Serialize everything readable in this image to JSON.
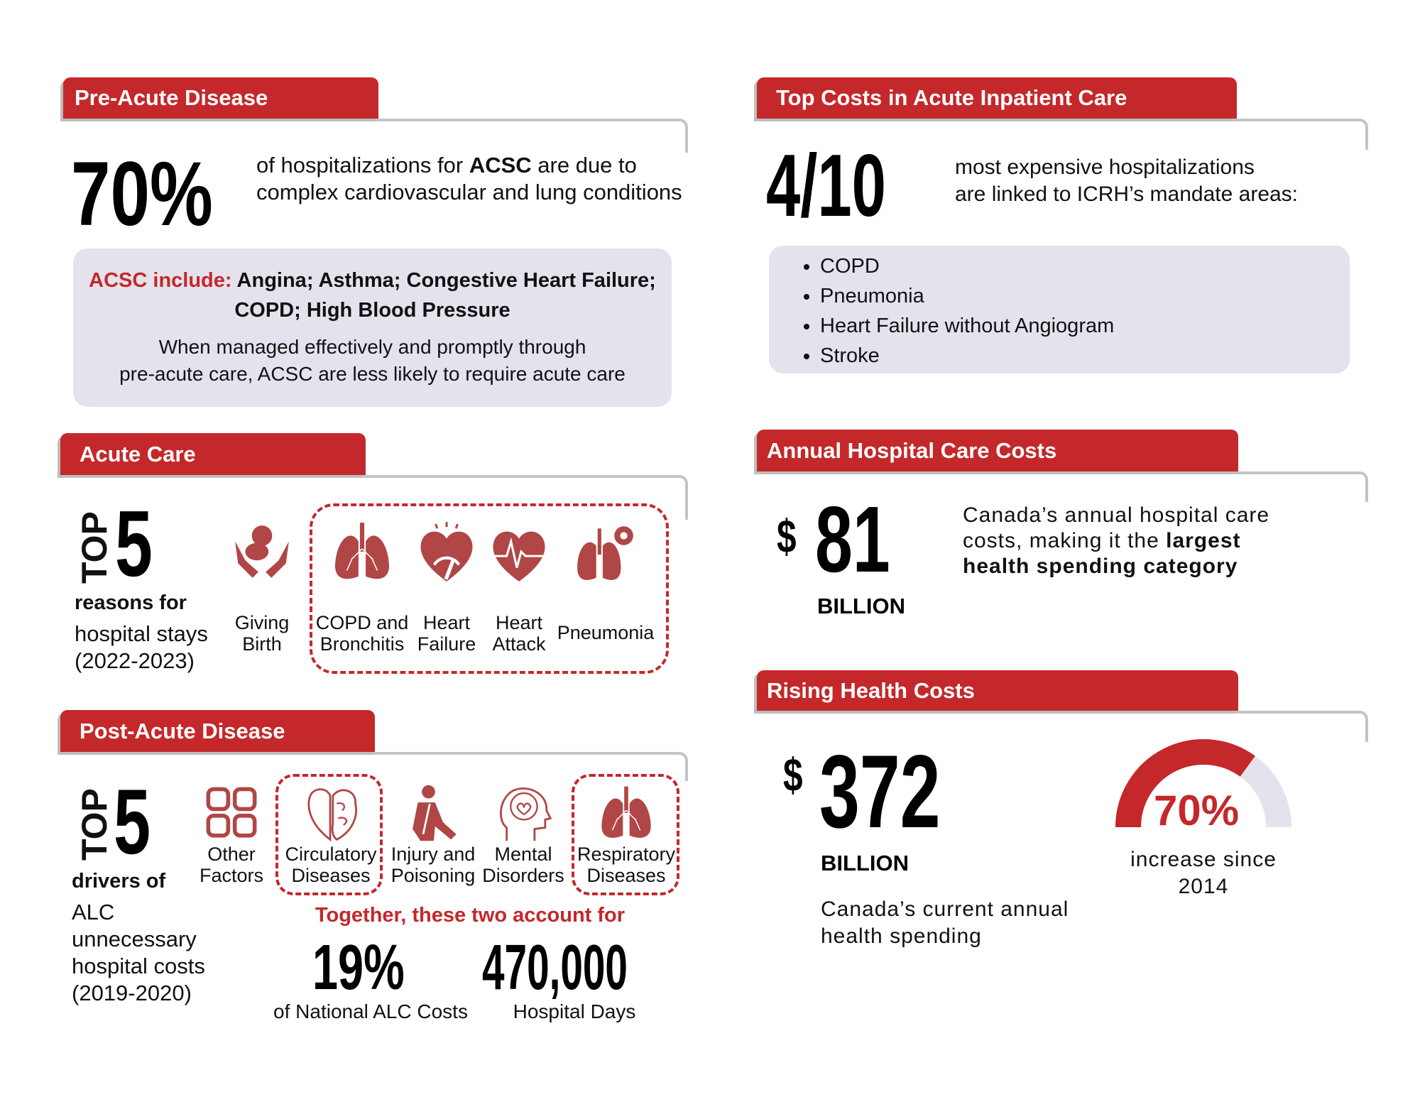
{
  "colors": {
    "accent": "#c4282a",
    "icon": "#b04646",
    "panel": "#e4e2ec",
    "rule": "#c4c4c4"
  },
  "pre_acute": {
    "header": "Pre-Acute Disease",
    "stat": "70%",
    "desc_1": "of hospitalizations for ",
    "desc_bold": "ACSC",
    "desc_2": " are due to",
    "desc_3": "complex cardiovascular and lung conditions",
    "include_label": "ACSC include:",
    "include_items_1": " Angina; Asthma; Congestive Heart Failure;",
    "include_items_2": "COPD;  High Blood Pressure",
    "note_1": "When managed effectively and promptly through",
    "note_2": "pre-acute care, ACSC are less likely to require acute care"
  },
  "acute": {
    "header": "Acute Care",
    "top": "TOP",
    "five": "5",
    "sub_bold": "reasons for",
    "sub_1": "hospital stays",
    "sub_2": "(2022-2023)",
    "reasons": [
      {
        "icon": "baby-in-hands-icon",
        "l1": "Giving",
        "l2": "Birth"
      },
      {
        "icon": "lungs-icon",
        "l1": "COPD and",
        "l2": "Bronchitis"
      },
      {
        "icon": "heart-gauge-icon",
        "l1": "Heart",
        "l2": "Failure"
      },
      {
        "icon": "heart-ecg-icon",
        "l1": "Heart",
        "l2": "Attack"
      },
      {
        "icon": "lungs-virus-icon",
        "l1": "Pneumonia",
        "l2": ""
      }
    ]
  },
  "post_acute": {
    "header": "Post-Acute Disease",
    "top": "TOP",
    "five": "5",
    "sub_bold": "drivers of",
    "sub_1": "ALC",
    "sub_2": "unnecessary",
    "sub_3": "hospital costs",
    "sub_4": "(2019-2020)",
    "drivers": [
      {
        "icon": "grid-squares-icon",
        "l1": "Other",
        "l2": "Factors"
      },
      {
        "icon": "heart-brain-icon",
        "l1": "Circulatory",
        "l2": "Diseases"
      },
      {
        "icon": "injured-person-icon",
        "l1": "Injury and",
        "l2": "Poisoning"
      },
      {
        "icon": "head-brain-icon",
        "l1": "Mental",
        "l2": "Disorders"
      },
      {
        "icon": "lungs-icon",
        "l1": "Respiratory",
        "l2": "Diseases"
      }
    ],
    "together": "Together, these two account for",
    "stat1": "19%",
    "stat1_label": "of National ALC Costs",
    "stat2": "470,000",
    "stat2_label": "Hospital Days"
  },
  "top_costs": {
    "header": "Top Costs in Acute Inpatient Care",
    "stat": "4/10",
    "desc_1": "most expensive hospitalizations",
    "desc_2": "are linked to ICRH’s mandate areas:",
    "items": [
      "COPD",
      "Pneumonia",
      "Heart Failure without Angiogram",
      "Stroke"
    ]
  },
  "annual": {
    "header": "Annual Hospital Care Costs",
    "currency": "$",
    "stat": "81",
    "unit": "BILLION",
    "desc_1": "Canada’s annual hospital care",
    "desc_2": "costs, making it the ",
    "desc_bold_1": "largest",
    "desc_bold_2": "health spending category"
  },
  "rising": {
    "header": "Rising Health Costs",
    "currency": "$",
    "stat": "372",
    "unit": "BILLION",
    "desc_1": "Canada’s current annual",
    "desc_2": "health spending",
    "gauge_value": 70,
    "gauge_label": "70%",
    "gauge_desc_1": "increase since",
    "gauge_desc_2": "2014"
  }
}
